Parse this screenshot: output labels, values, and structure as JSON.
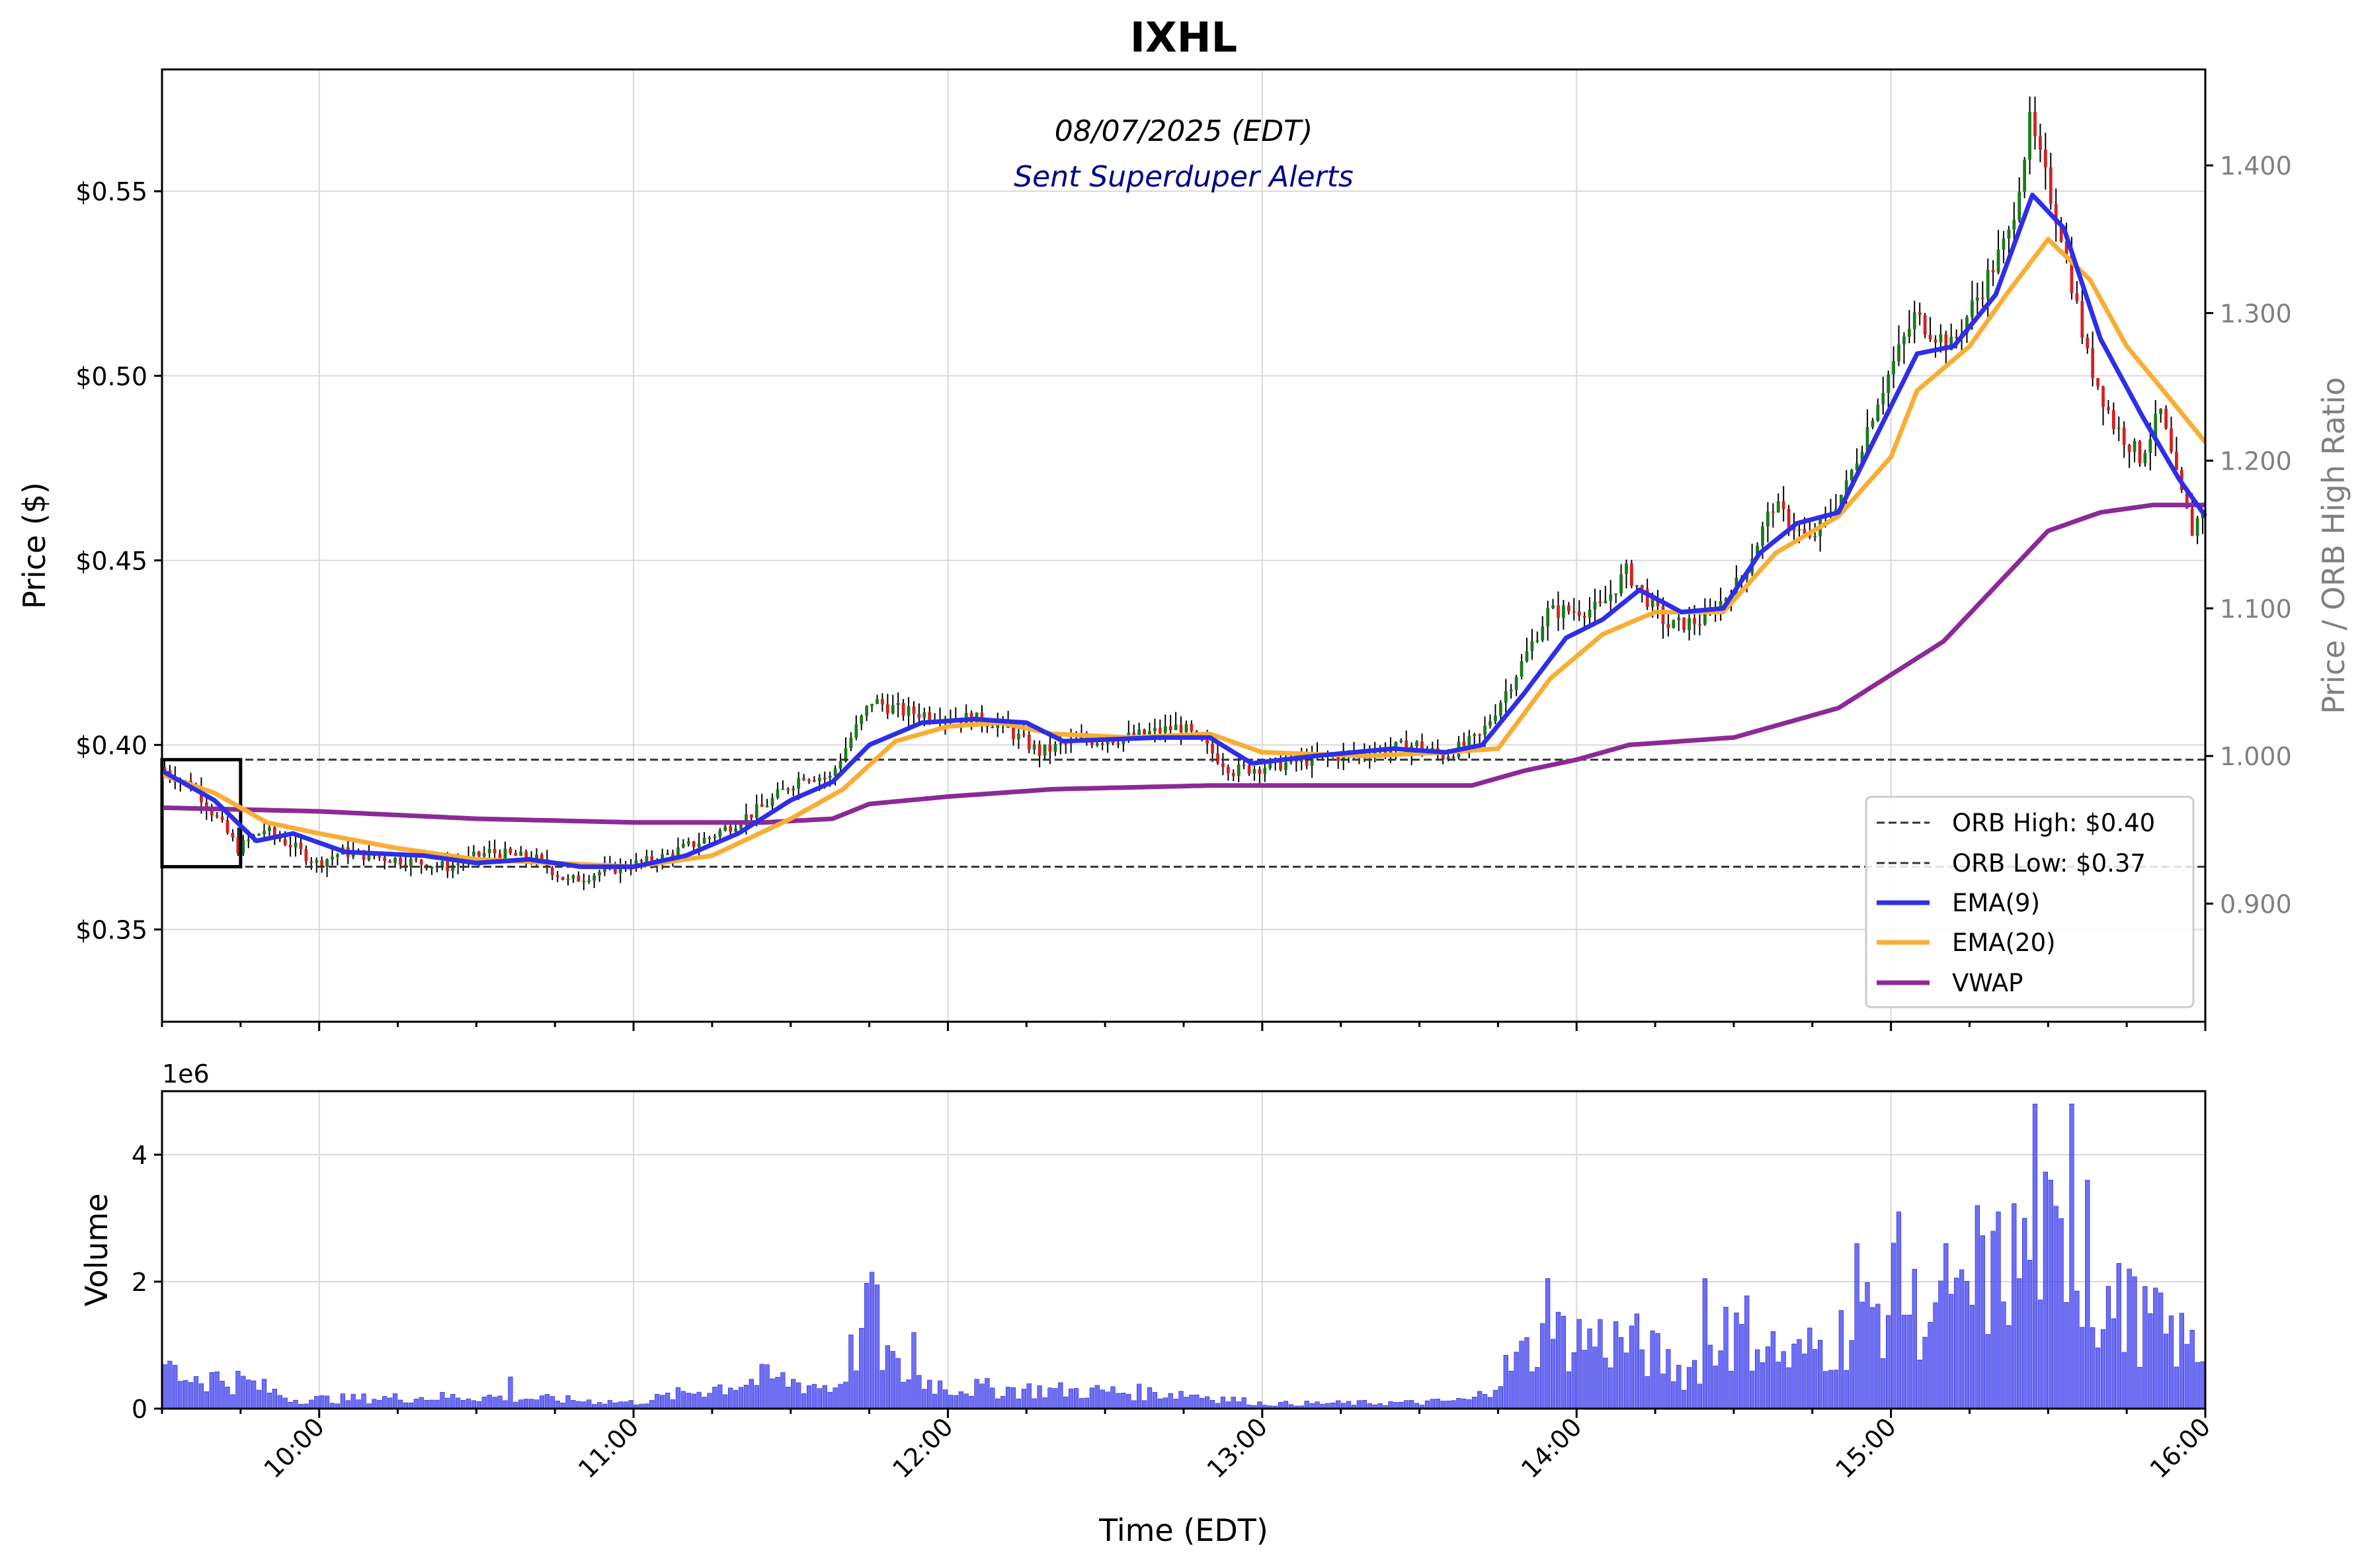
{
  "title": "IXHL",
  "subtitle_date": "08/07/2025 (EDT)",
  "subtitle_alert": "Sent Superduper Alerts",
  "colors": {
    "up": "#1a7a1a",
    "down": "#d62020",
    "wick": "#000000",
    "ema9": "#2e2ee8",
    "ema20": "#f8ae35",
    "vwap": "#8b2a96",
    "volume": "#5555f5",
    "grid": "#d9d9d9",
    "right_axis_text": "#808080",
    "alert_text": "#00008b"
  },
  "chart_data": [
    {
      "type": "candlestick",
      "panel": "price",
      "ylabel": "Price ($)",
      "ylabel_right": "Price / ORB High Ratio",
      "ylim": [
        0.325,
        0.583
      ],
      "ylim_right": [
        0.82,
        1.465
      ],
      "y_ticks": [
        0.35,
        0.4,
        0.45,
        0.5,
        0.55
      ],
      "y_tick_labels": [
        "$0.35",
        "$0.40",
        "$0.45",
        "$0.50",
        "$0.55"
      ],
      "y_ticks_right": [
        0.9,
        1.0,
        1.1,
        1.2,
        1.3,
        1.4
      ],
      "y_tick_labels_right": [
        "0.900",
        "1.000",
        "1.100",
        "1.200",
        "1.300",
        "1.400"
      ],
      "x_range": [
        "09:30",
        "16:00"
      ],
      "grid": true,
      "legend_position": "lower-right",
      "legend": [
        {
          "label": "ORB High: $0.40",
          "style": "dashed",
          "color": "#333333"
        },
        {
          "label": "ORB Low: $0.37",
          "style": "dashed",
          "color": "#333333"
        },
        {
          "label": "EMA(9)",
          "style": "solid",
          "color": "#2e2ee8"
        },
        {
          "label": "EMA(20)",
          "style": "solid",
          "color": "#f8ae35"
        },
        {
          "label": "VWAP",
          "style": "solid",
          "color": "#8b2a96"
        }
      ],
      "orb_high": 0.396,
      "orb_low": 0.367,
      "orb_box": {
        "start": "09:30",
        "end": "09:45",
        "high": 0.396,
        "low": 0.367
      },
      "price_anchors": [
        [
          "09:30",
          0.394
        ],
        [
          "09:37",
          0.388
        ],
        [
          "09:45",
          0.372
        ],
        [
          "09:50",
          0.377
        ],
        [
          "09:55",
          0.373
        ],
        [
          "10:00",
          0.368
        ],
        [
          "10:05",
          0.371
        ],
        [
          "10:15",
          0.369
        ],
        [
          "10:25",
          0.367
        ],
        [
          "10:33",
          0.371
        ],
        [
          "10:42",
          0.369
        ],
        [
          "10:48",
          0.363
        ],
        [
          "10:55",
          0.366
        ],
        [
          "11:05",
          0.369
        ],
        [
          "11:15",
          0.375
        ],
        [
          "11:25",
          0.383
        ],
        [
          "11:33",
          0.392
        ],
        [
          "11:38",
          0.391
        ],
        [
          "11:42",
          0.402
        ],
        [
          "11:46",
          0.412
        ],
        [
          "11:52",
          0.409
        ],
        [
          "12:00",
          0.408
        ],
        [
          "12:10",
          0.406
        ],
        [
          "12:18",
          0.398
        ],
        [
          "12:25",
          0.401
        ],
        [
          "12:35",
          0.402
        ],
        [
          "12:45",
          0.405
        ],
        [
          "12:55",
          0.393
        ],
        [
          "13:05",
          0.395
        ],
        [
          "13:20",
          0.398
        ],
        [
          "13:30",
          0.4
        ],
        [
          "13:35",
          0.397
        ],
        [
          "13:42",
          0.402
        ],
        [
          "13:50",
          0.422
        ],
        [
          "13:55",
          0.436
        ],
        [
          "14:05",
          0.437
        ],
        [
          "14:10",
          0.447
        ],
        [
          "14:18",
          0.432
        ],
        [
          "14:25",
          0.434
        ],
        [
          "14:32",
          0.445
        ],
        [
          "14:38",
          0.465
        ],
        [
          "14:45",
          0.455
        ],
        [
          "14:52",
          0.47
        ],
        [
          "14:58",
          0.494
        ],
        [
          "15:05",
          0.516
        ],
        [
          "15:12",
          0.508
        ],
        [
          "15:18",
          0.524
        ],
        [
          "15:23",
          0.538
        ],
        [
          "15:27",
          0.568
        ],
        [
          "15:33",
          0.539
        ],
        [
          "15:38",
          0.505
        ],
        [
          "15:43",
          0.487
        ],
        [
          "15:48",
          0.478
        ],
        [
          "15:52",
          0.49
        ],
        [
          "15:55",
          0.472
        ],
        [
          "15:58",
          0.458
        ],
        [
          "16:00",
          0.464
        ]
      ],
      "ema9_anchors": [
        [
          "09:30",
          0.393
        ],
        [
          "09:40",
          0.385
        ],
        [
          "09:48",
          0.374
        ],
        [
          "09:55",
          0.376
        ],
        [
          "10:05",
          0.371
        ],
        [
          "10:20",
          0.37
        ],
        [
          "10:30",
          0.368
        ],
        [
          "10:40",
          0.369
        ],
        [
          "10:50",
          0.367
        ],
        [
          "11:00",
          0.367
        ],
        [
          "11:10",
          0.37
        ],
        [
          "11:20",
          0.376
        ],
        [
          "11:30",
          0.385
        ],
        [
          "11:38",
          0.39
        ],
        [
          "11:45",
          0.4
        ],
        [
          "11:55",
          0.406
        ],
        [
          "12:05",
          0.407
        ],
        [
          "12:15",
          0.406
        ],
        [
          "12:22",
          0.401
        ],
        [
          "12:40",
          0.402
        ],
        [
          "12:50",
          0.402
        ],
        [
          "12:58",
          0.395
        ],
        [
          "13:10",
          0.397
        ],
        [
          "13:25",
          0.399
        ],
        [
          "13:35",
          0.398
        ],
        [
          "13:42",
          0.4
        ],
        [
          "13:50",
          0.414
        ],
        [
          "13:58",
          0.429
        ],
        [
          "14:05",
          0.434
        ],
        [
          "14:12",
          0.442
        ],
        [
          "14:20",
          0.436
        ],
        [
          "14:28",
          0.437
        ],
        [
          "14:35",
          0.452
        ],
        [
          "14:42",
          0.46
        ],
        [
          "14:50",
          0.463
        ],
        [
          "14:58",
          0.486
        ],
        [
          "15:05",
          0.506
        ],
        [
          "15:12",
          0.508
        ],
        [
          "15:20",
          0.522
        ],
        [
          "15:27",
          0.549
        ],
        [
          "15:33",
          0.54
        ],
        [
          "15:40",
          0.51
        ],
        [
          "15:48",
          0.489
        ],
        [
          "15:55",
          0.472
        ],
        [
          "16:00",
          0.462
        ]
      ],
      "ema20_anchors": [
        [
          "09:30",
          0.392
        ],
        [
          "09:40",
          0.387
        ],
        [
          "09:50",
          0.379
        ],
        [
          "10:00",
          0.376
        ],
        [
          "10:15",
          0.372
        ],
        [
          "10:30",
          0.369
        ],
        [
          "10:45",
          0.368
        ],
        [
          "11:00",
          0.367
        ],
        [
          "11:15",
          0.37
        ],
        [
          "11:30",
          0.38
        ],
        [
          "11:40",
          0.388
        ],
        [
          "11:50",
          0.401
        ],
        [
          "12:00",
          0.405
        ],
        [
          "12:10",
          0.406
        ],
        [
          "12:20",
          0.403
        ],
        [
          "12:35",
          0.402
        ],
        [
          "12:50",
          0.403
        ],
        [
          "13:00",
          0.398
        ],
        [
          "13:20",
          0.397
        ],
        [
          "13:35",
          0.398
        ],
        [
          "13:45",
          0.399
        ],
        [
          "13:55",
          0.418
        ],
        [
          "14:05",
          0.43
        ],
        [
          "14:15",
          0.436
        ],
        [
          "14:28",
          0.436
        ],
        [
          "14:38",
          0.452
        ],
        [
          "14:50",
          0.462
        ],
        [
          "15:00",
          0.478
        ],
        [
          "15:05",
          0.496
        ],
        [
          "15:15",
          0.508
        ],
        [
          "15:22",
          0.522
        ],
        [
          "15:30",
          0.537
        ],
        [
          "15:38",
          0.526
        ],
        [
          "15:45",
          0.508
        ],
        [
          "15:52",
          0.496
        ],
        [
          "16:00",
          0.482
        ]
      ],
      "vwap_anchors": [
        [
          "09:30",
          0.383
        ],
        [
          "10:00",
          0.382
        ],
        [
          "10:30",
          0.38
        ],
        [
          "11:00",
          0.379
        ],
        [
          "11:25",
          0.379
        ],
        [
          "11:38",
          0.38
        ],
        [
          "11:45",
          0.384
        ],
        [
          "12:00",
          0.386
        ],
        [
          "12:20",
          0.388
        ],
        [
          "12:50",
          0.389
        ],
        [
          "13:30",
          0.389
        ],
        [
          "13:40",
          0.389
        ],
        [
          "13:50",
          0.393
        ],
        [
          "14:00",
          0.396
        ],
        [
          "14:10",
          0.4
        ],
        [
          "14:20",
          0.401
        ],
        [
          "14:30",
          0.402
        ],
        [
          "14:40",
          0.406
        ],
        [
          "14:50",
          0.41
        ],
        [
          "15:00",
          0.419
        ],
        [
          "15:10",
          0.428
        ],
        [
          "15:20",
          0.443
        ],
        [
          "15:30",
          0.458
        ],
        [
          "15:40",
          0.463
        ],
        [
          "15:50",
          0.465
        ],
        [
          "16:00",
          0.465
        ]
      ]
    },
    {
      "type": "bar",
      "panel": "volume",
      "ylabel": "Volume",
      "scale_label": "1e6",
      "ylim": [
        0,
        5.0
      ],
      "y_ticks": [
        0,
        2,
        4
      ],
      "y_tick_labels": [
        "0",
        "2",
        "4"
      ],
      "xlabel": "Time (EDT)",
      "x_ticks": [
        "10:00",
        "11:00",
        "12:00",
        "13:00",
        "14:00",
        "15:00",
        "16:00"
      ],
      "grid": true,
      "volume_anchors_millions": [
        [
          "09:30",
          0.6
        ],
        [
          "09:45",
          0.45
        ],
        [
          "09:55",
          0.15
        ],
        [
          "10:30",
          0.2
        ],
        [
          "11:00",
          0.1
        ],
        [
          "11:15",
          0.35
        ],
        [
          "11:25",
          0.5
        ],
        [
          "11:38",
          0.35
        ],
        [
          "11:44",
          1.4
        ],
        [
          "11:50",
          0.6
        ],
        [
          "12:00",
          0.35
        ],
        [
          "12:20",
          0.3
        ],
        [
          "12:45",
          0.25
        ],
        [
          "13:00",
          0.08
        ],
        [
          "13:30",
          0.1
        ],
        [
          "13:40",
          0.15
        ],
        [
          "13:48",
          0.8
        ],
        [
          "13:55",
          1.2
        ],
        [
          "14:10",
          1.1
        ],
        [
          "14:20",
          0.6
        ],
        [
          "14:32",
          1.3
        ],
        [
          "14:40",
          0.8
        ],
        [
          "14:50",
          1.2
        ],
        [
          "15:00",
          1.8
        ],
        [
          "15:10",
          1.4
        ],
        [
          "15:20",
          2.2
        ],
        [
          "15:28",
          2.8
        ],
        [
          "15:38",
          1.9
        ],
        [
          "15:48",
          1.4
        ],
        [
          "15:55",
          1.1
        ],
        [
          "16:00",
          0.9
        ]
      ],
      "volume_spikes_millions": [
        [
          "09:31",
          0.75
        ],
        [
          "10:36",
          0.5
        ],
        [
          "11:45",
          2.15
        ],
        [
          "11:46",
          1.95
        ],
        [
          "11:53",
          1.2
        ],
        [
          "13:54",
          2.05
        ],
        [
          "14:24",
          2.05
        ],
        [
          "14:28",
          1.6
        ],
        [
          "14:53",
          2.6
        ],
        [
          "15:01",
          3.1
        ],
        [
          "15:10",
          2.6
        ],
        [
          "15:16",
          3.2
        ],
        [
          "15:20",
          3.1
        ],
        [
          "15:25",
          3.0
        ],
        [
          "15:27",
          4.8
        ],
        [
          "15:30",
          3.6
        ],
        [
          "15:34",
          4.8
        ],
        [
          "15:37",
          3.6
        ],
        [
          "15:45",
          2.2
        ],
        [
          "15:50",
          1.9
        ]
      ]
    }
  ]
}
